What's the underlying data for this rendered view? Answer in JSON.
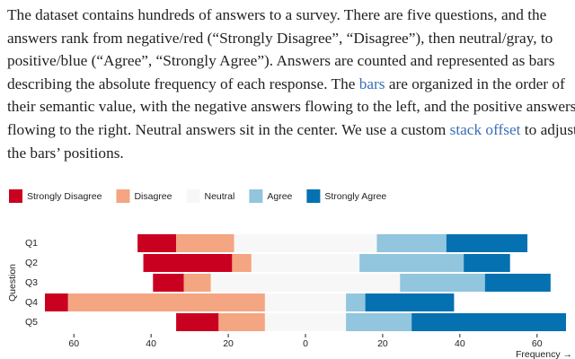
{
  "paragraph": [
    "The dataset contains hundreds of answers to a survey. There are five questions, and the answers rank from negative/red (“Strongly Disagree”, “Disagree”), then neutral/gray, to positive/blue (“Agree”, “Strongly Agree”). Answers are counted and represented as bars describing the absolute frequency of each response. The ",
    {
      "link": "bars"
    },
    " are organized in the order of their semantic value, with the negative answers flowing to the left, and the positive answers flowing to the right. Neutral answers sit in the center. We use a custom ",
    {
      "link": "stack offset"
    },
    " to adjust the bars’ positions."
  ],
  "chart_data": {
    "type": "diverging-bar",
    "categories": [
      "Q1",
      "Q2",
      "Q3",
      "Q4",
      "Q5"
    ],
    "series": [
      {
        "name": "Strongly Disagree",
        "color": "#ca0020",
        "values": [
          10,
          23,
          8,
          6,
          11
        ]
      },
      {
        "name": "Disagree",
        "color": "#f4a582",
        "values": [
          15,
          5,
          7,
          51,
          12
        ]
      },
      {
        "name": "Neutral",
        "color": "#f7f7f7",
        "values": [
          37,
          28,
          49,
          21,
          21
        ]
      },
      {
        "name": "Agree",
        "color": "#92c5de",
        "values": [
          18,
          27,
          22,
          5,
          17
        ]
      },
      {
        "name": "Strongly Agree",
        "color": "#0571b0",
        "values": [
          21,
          12,
          17,
          23,
          40
        ]
      }
    ],
    "xlim": [
      -67.5,
      67.5
    ],
    "xticks": [
      {
        "value": -60,
        "label": "60"
      },
      {
        "value": -40,
        "label": "40"
      },
      {
        "value": -20,
        "label": "20"
      },
      0,
      20,
      40,
      60
    ],
    "xlabel": "Frequency →",
    "ylabel": "Question"
  }
}
